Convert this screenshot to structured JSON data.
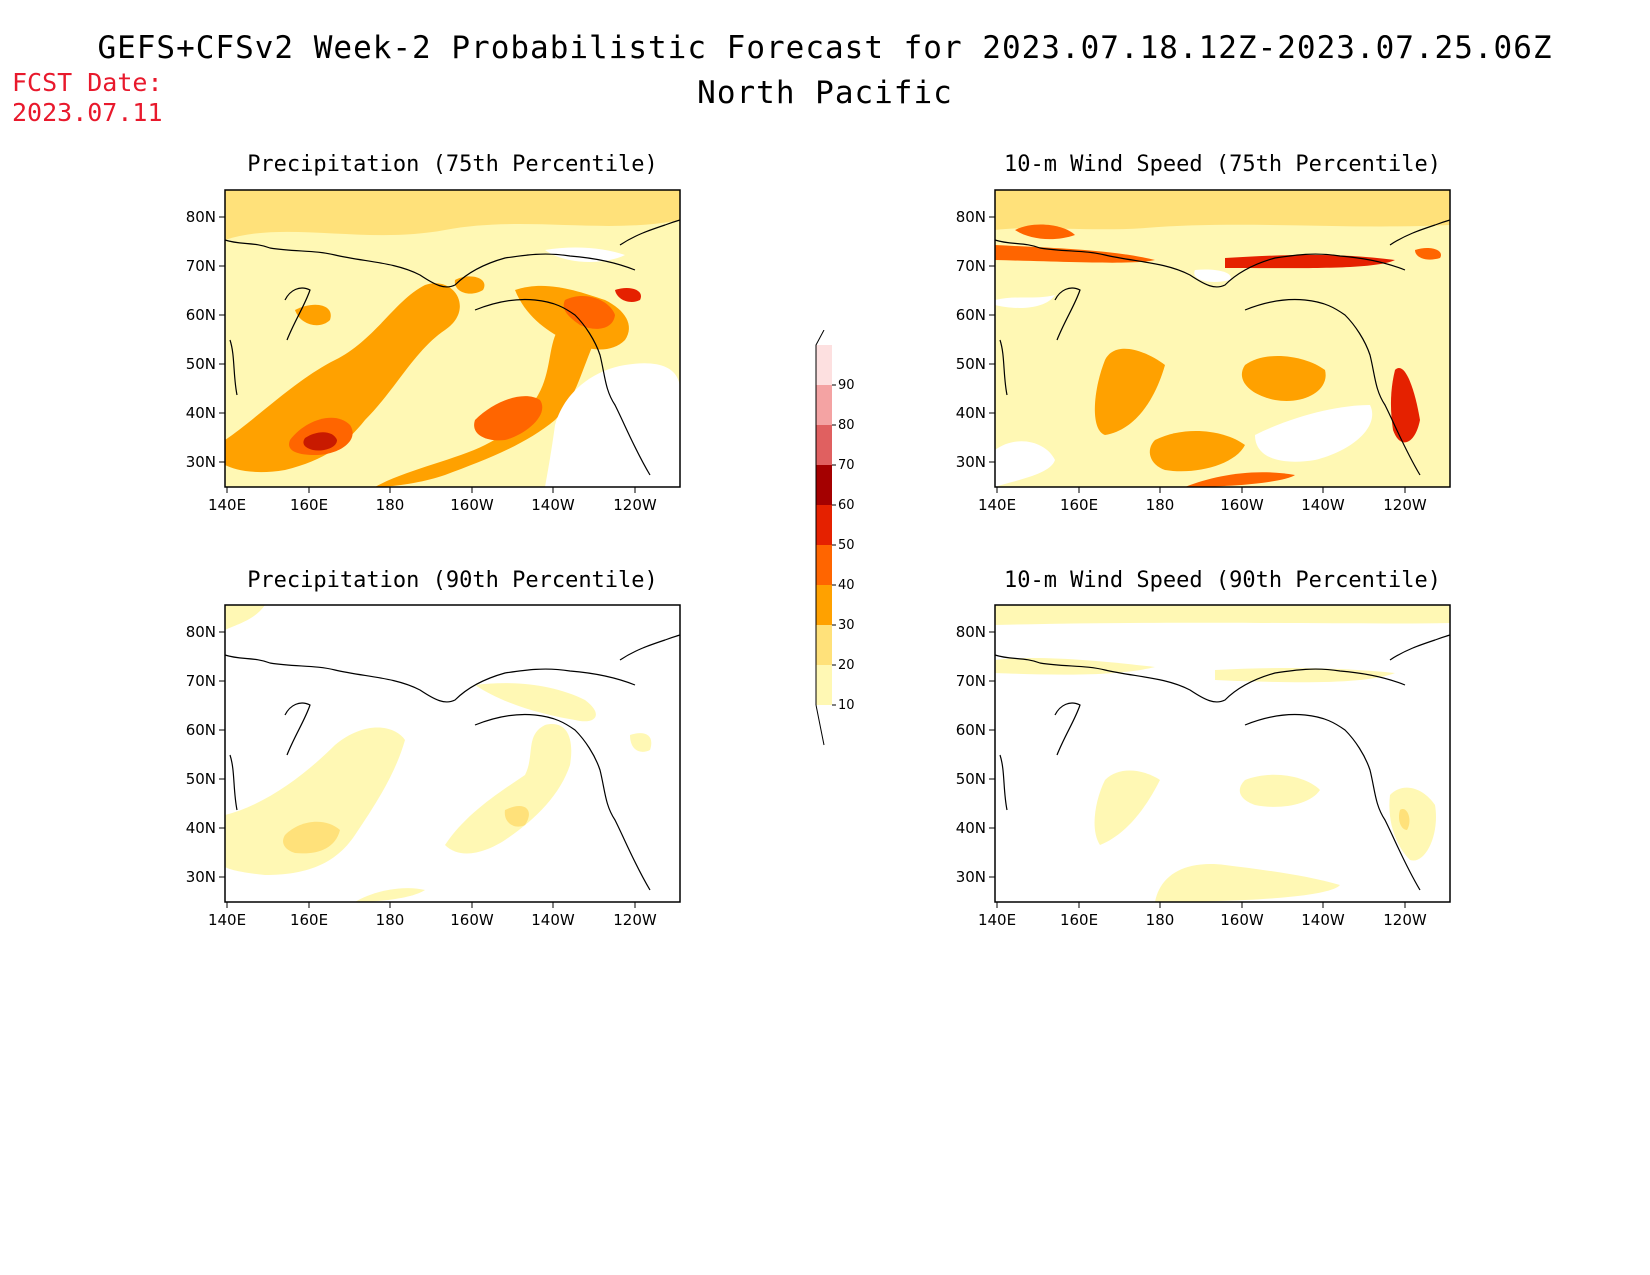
{
  "header": {
    "title": "GEFS+CFSv2 Week-2 Probabilistic Forecast for 2023.07.18.12Z-2023.07.25.06Z",
    "subtitle": "North Pacific",
    "fcst_label": "FCST Date:",
    "fcst_date": "2023.07.11"
  },
  "lat_ticks": [
    "80N",
    "70N",
    "60N",
    "50N",
    "40N",
    "30N"
  ],
  "lon_ticks": [
    "140E",
    "160E",
    "180",
    "160W",
    "140W",
    "120W"
  ],
  "panels": [
    {
      "id": "precip75",
      "title": "Precipitation (75th Percentile)"
    },
    {
      "id": "wind75",
      "title": "10-m Wind Speed (75th Percentile)"
    },
    {
      "id": "precip90",
      "title": "Precipitation (90th Percentile)"
    },
    {
      "id": "wind90",
      "title": "10-m Wind Speed (90th Percentile)"
    }
  ],
  "colorbar": {
    "levels": [
      "10",
      "20",
      "30",
      "40",
      "50",
      "60",
      "70",
      "80",
      "90"
    ],
    "colors": [
      "#fff8b4",
      "#ffe17a",
      "#ffa100",
      "#ff6500",
      "#e52100",
      "#a40000",
      "#e06060",
      "#f4a3a3",
      "#fde0e0"
    ]
  }
}
